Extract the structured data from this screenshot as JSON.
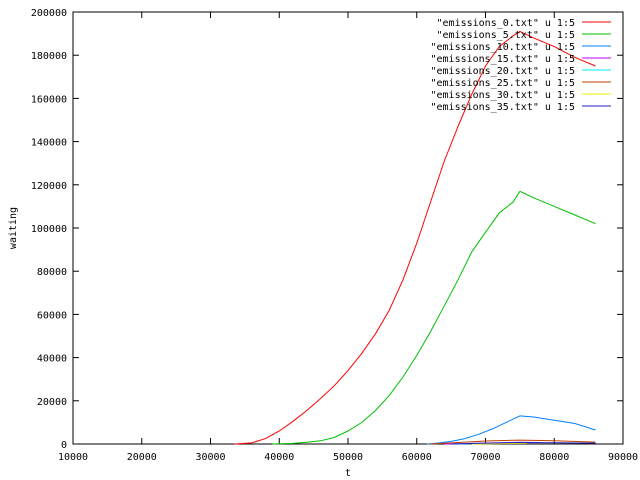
{
  "chart_data": {
    "type": "line",
    "xlabel": "t",
    "ylabel": "waiting",
    "xlim": [
      10000,
      90000
    ],
    "ylim": [
      0,
      200000
    ],
    "xticks": [
      10000,
      20000,
      30000,
      40000,
      50000,
      60000,
      70000,
      80000,
      90000
    ],
    "yticks": [
      0,
      20000,
      40000,
      60000,
      80000,
      100000,
      120000,
      140000,
      160000,
      180000,
      200000
    ],
    "grid": false,
    "legend_position": "top-right",
    "series": [
      {
        "name": "\"emissions_0.txt\" u 1:5",
        "color": "#ff0000",
        "points": [
          [
            33500,
            0
          ],
          [
            36000,
            500
          ],
          [
            38000,
            2500
          ],
          [
            40000,
            6000
          ],
          [
            42000,
            10500
          ],
          [
            44000,
            15500
          ],
          [
            46000,
            21000
          ],
          [
            48000,
            27000
          ],
          [
            50000,
            34000
          ],
          [
            52000,
            42000
          ],
          [
            54000,
            51000
          ],
          [
            56000,
            62000
          ],
          [
            58000,
            76000
          ],
          [
            60000,
            93000
          ],
          [
            62000,
            112000
          ],
          [
            64000,
            131000
          ],
          [
            66000,
            147000
          ],
          [
            68000,
            162000
          ],
          [
            70000,
            175000
          ],
          [
            72000,
            184000
          ],
          [
            74000,
            189000
          ],
          [
            75000,
            191000
          ],
          [
            77000,
            188000
          ],
          [
            80000,
            184000
          ],
          [
            83000,
            179000
          ],
          [
            86000,
            175000
          ]
        ]
      },
      {
        "name": "\"emissions_5.txt\" u 1:5",
        "color": "#00c000",
        "points": [
          [
            39000,
            0
          ],
          [
            42000,
            300
          ],
          [
            44000,
            800
          ],
          [
            46000,
            1500
          ],
          [
            48000,
            3000
          ],
          [
            50000,
            6000
          ],
          [
            52000,
            10000
          ],
          [
            54000,
            15500
          ],
          [
            56000,
            22500
          ],
          [
            58000,
            31000
          ],
          [
            60000,
            41000
          ],
          [
            62000,
            52000
          ],
          [
            64000,
            64000
          ],
          [
            66000,
            76000
          ],
          [
            68000,
            89000
          ],
          [
            70000,
            98000
          ],
          [
            72000,
            107000
          ],
          [
            74000,
            112000
          ],
          [
            75000,
            117000
          ],
          [
            77000,
            114000
          ],
          [
            80000,
            110000
          ],
          [
            83000,
            106000
          ],
          [
            86000,
            102000
          ]
        ]
      },
      {
        "name": "\"emissions_10.txt\" u 1:5",
        "color": "#0080ff",
        "points": [
          [
            61500,
            0
          ],
          [
            63000,
            400
          ],
          [
            65000,
            1200
          ],
          [
            67000,
            2500
          ],
          [
            69000,
            4500
          ],
          [
            71000,
            7000
          ],
          [
            73000,
            10000
          ],
          [
            75000,
            13000
          ],
          [
            77000,
            12500
          ],
          [
            80000,
            11000
          ],
          [
            83000,
            9500
          ],
          [
            86000,
            6500
          ]
        ]
      },
      {
        "name": "\"emissions_15.txt\" u 1:5",
        "color": "#c000ff",
        "points": [
          [
            64000,
            0
          ],
          [
            68000,
            300
          ],
          [
            72000,
            600
          ],
          [
            75000,
            800
          ],
          [
            78000,
            700
          ]
        ]
      },
      {
        "name": "\"emissions_20.txt\" u 1:5",
        "color": "#00eeee",
        "points": [
          [
            66000,
            0
          ],
          [
            70000,
            300
          ],
          [
            74000,
            500
          ],
          [
            76000,
            600
          ]
        ]
      },
      {
        "name": "\"emissions_25.txt\" u 1:5",
        "color": "#c04000",
        "points": [
          [
            62000,
            0
          ],
          [
            66000,
            700
          ],
          [
            70000,
            1400
          ],
          [
            75000,
            1800
          ],
          [
            80000,
            1500
          ],
          [
            86000,
            900
          ]
        ]
      },
      {
        "name": "\"emissions_30.txt\" u 1:5",
        "color": "#eeee00",
        "points": [
          [
            68000,
            0
          ],
          [
            72000,
            200
          ],
          [
            76000,
            300
          ]
        ]
      },
      {
        "name": "\"emissions_35.txt\" u 1:5",
        "color": "#2020c0",
        "points": [
          [
            65000,
            0
          ],
          [
            70000,
            400
          ],
          [
            75000,
            700
          ],
          [
            80000,
            600
          ],
          [
            86000,
            400
          ]
        ]
      }
    ]
  }
}
